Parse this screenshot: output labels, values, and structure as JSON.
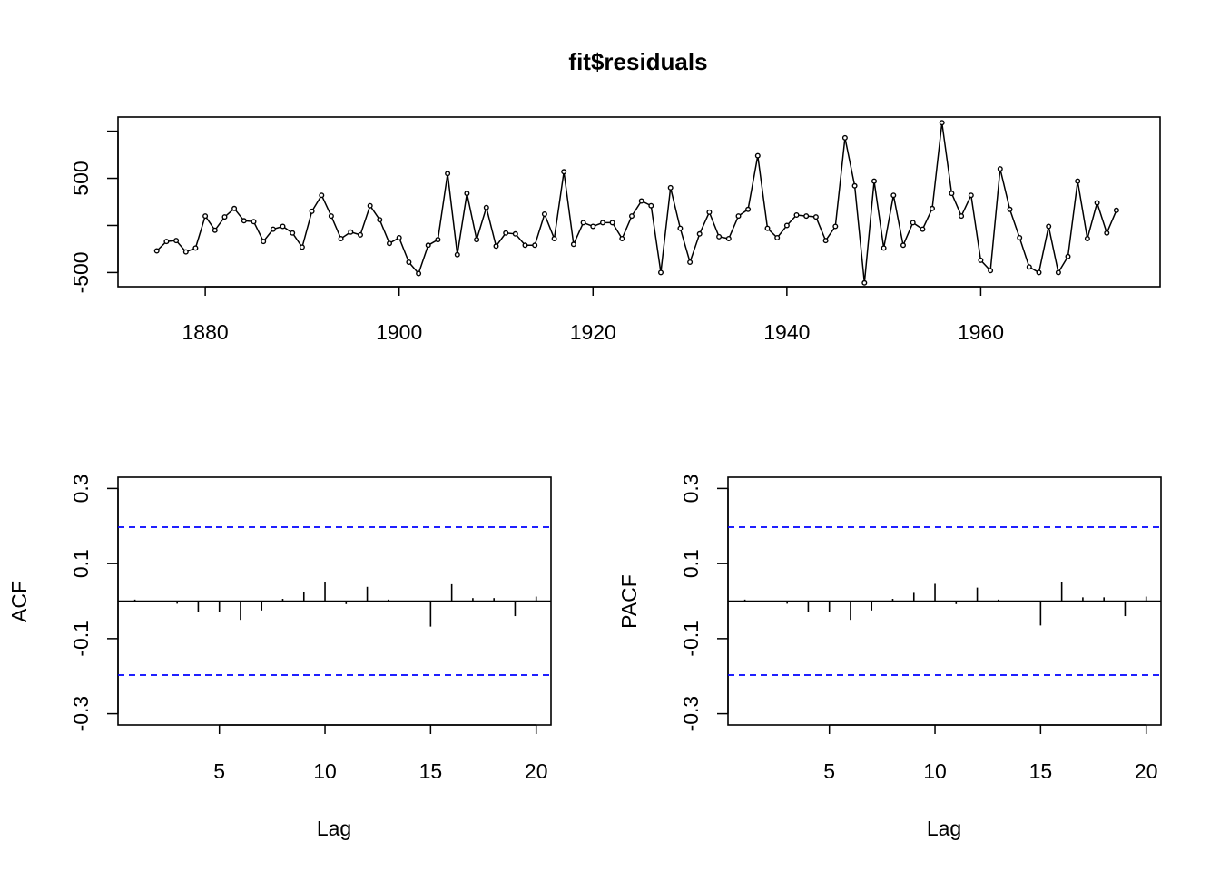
{
  "chart_data": [
    {
      "type": "line",
      "title": "fit$residuals",
      "xlabel": "",
      "ylabel": "",
      "xlim": [
        1871,
        1978.5
      ],
      "ylim": [
        -650,
        1150
      ],
      "x_ticks": [
        1880,
        1900,
        1920,
        1940,
        1960
      ],
      "y_ticks": [
        -500,
        0,
        500,
        1000
      ],
      "y_tick_labels": [
        "-500",
        "",
        "500",
        ""
      ],
      "x_start": 1875,
      "x_step": 1,
      "points_shown": true,
      "values": [
        -270,
        -170,
        -160,
        -280,
        -240,
        100,
        -50,
        90,
        180,
        50,
        40,
        -170,
        -40,
        -10,
        -80,
        -230,
        150,
        320,
        100,
        -140,
        -70,
        -100,
        210,
        60,
        -190,
        -130,
        -390,
        -510,
        -210,
        -150,
        550,
        -310,
        340,
        -150,
        190,
        -220,
        -80,
        -90,
        -210,
        -210,
        120,
        -140,
        570,
        -200,
        30,
        -10,
        30,
        30,
        -140,
        100,
        260,
        210,
        -500,
        400,
        -30,
        -390,
        -90,
        140,
        -120,
        -140,
        100,
        170,
        740,
        -30,
        -130,
        0,
        110,
        100,
        90,
        -160,
        -10,
        930,
        420,
        -610,
        470,
        -240,
        320,
        -210,
        30,
        -40,
        180,
        1090,
        340,
        100,
        320,
        -370,
        -480,
        600,
        170,
        -130,
        -440,
        -500,
        -10,
        -500,
        -330,
        470,
        -140,
        240,
        -80,
        160
      ]
    },
    {
      "type": "bar",
      "xlabel": "Lag",
      "ylabel": "ACF",
      "xlim": [
        0.2,
        20.7
      ],
      "ylim": [
        -0.33,
        0.33
      ],
      "x_ticks": [
        5,
        10,
        15,
        20
      ],
      "y_ticks": [
        -0.3,
        -0.1,
        0.1,
        0.3
      ],
      "ci": 0.197,
      "lags": [
        1,
        2,
        3,
        4,
        5,
        6,
        7,
        8,
        9,
        10,
        11,
        12,
        13,
        14,
        15,
        16,
        17,
        18,
        19,
        20
      ],
      "values": [
        0.004,
        0.001,
        -0.007,
        -0.03,
        -0.03,
        -0.05,
        -0.025,
        0.006,
        0.025,
        0.05,
        -0.008,
        0.038,
        0.004,
        0.0,
        -0.068,
        0.045,
        0.008,
        0.008,
        -0.04,
        0.012
      ]
    },
    {
      "type": "bar",
      "xlabel": "Lag",
      "ylabel": "PACF",
      "xlim": [
        0.2,
        20.7
      ],
      "ylim": [
        -0.33,
        0.33
      ],
      "x_ticks": [
        5,
        10,
        15,
        20
      ],
      "y_ticks": [
        -0.3,
        -0.1,
        0.1,
        0.3
      ],
      "ci": 0.197,
      "lags": [
        1,
        2,
        3,
        4,
        5,
        6,
        7,
        8,
        9,
        10,
        11,
        12,
        13,
        14,
        15,
        16,
        17,
        18,
        19,
        20
      ],
      "values": [
        0.004,
        0.001,
        -0.007,
        -0.03,
        -0.03,
        -0.05,
        -0.025,
        0.006,
        0.022,
        0.046,
        -0.008,
        0.036,
        0.004,
        0.0,
        -0.065,
        0.05,
        0.01,
        0.01,
        -0.04,
        0.012
      ]
    }
  ]
}
